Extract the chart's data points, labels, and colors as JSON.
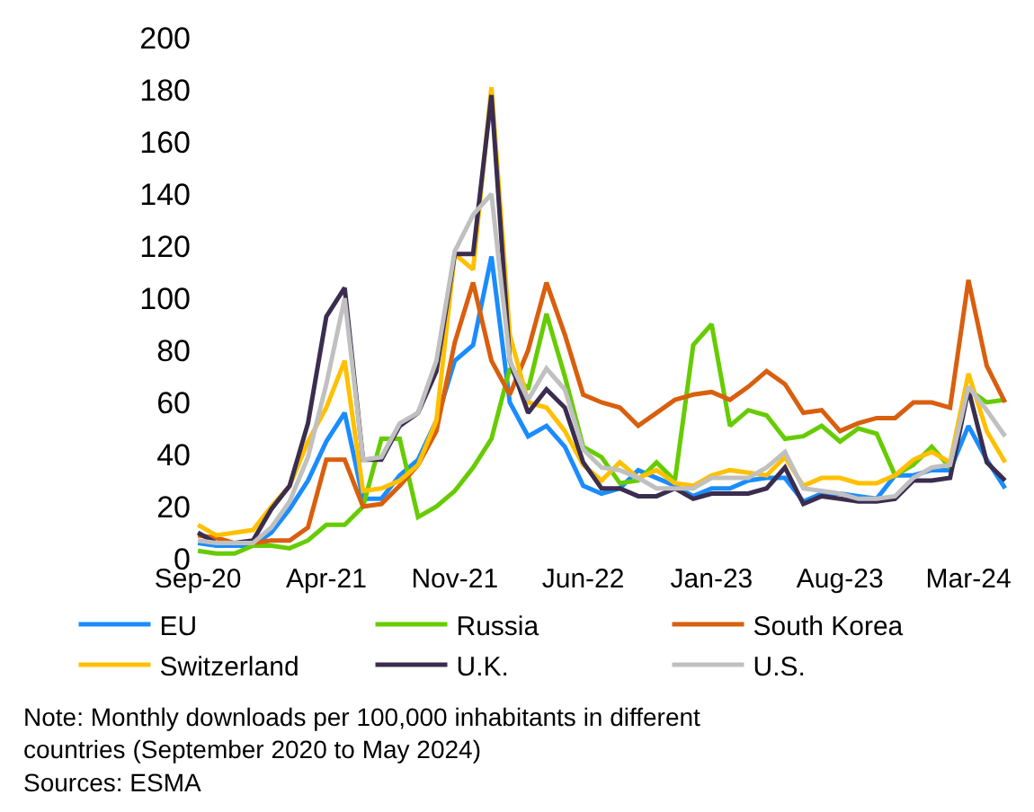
{
  "chart_data": {
    "type": "line",
    "categories": [
      "Sep-20",
      null,
      null,
      null,
      null,
      null,
      null,
      "Apr-21",
      null,
      null,
      null,
      null,
      null,
      null,
      "Nov-21",
      null,
      null,
      null,
      null,
      null,
      null,
      "Jun-22",
      null,
      null,
      null,
      null,
      null,
      null,
      "Jan-23",
      null,
      null,
      null,
      null,
      null,
      null,
      "Aug-23",
      null,
      null,
      null,
      null,
      null,
      null,
      "Mar-24",
      null,
      null
    ],
    "series": [
      {
        "name": "EU",
        "color": "#1a8cff",
        "values": [
          6,
          5,
          5,
          5,
          10,
          19,
          30,
          45,
          56,
          23,
          23,
          32,
          38,
          53,
          76,
          82,
          116,
          60,
          47,
          51,
          43,
          28,
          25,
          27,
          34,
          31,
          28,
          24,
          27,
          27,
          30,
          31,
          31,
          22,
          25,
          25,
          24,
          23,
          32,
          32,
          34,
          34,
          51,
          38,
          27
        ]
      },
      {
        "name": "Russia",
        "color": "#66cc00",
        "values": [
          3,
          2,
          2,
          5,
          5,
          4,
          7,
          13,
          13,
          20,
          46,
          46,
          16,
          20,
          26,
          35,
          46,
          73,
          65,
          94,
          70,
          43,
          39,
          29,
          30,
          37,
          30,
          82,
          90,
          51,
          57,
          55,
          46,
          47,
          51,
          45,
          50,
          48,
          32,
          36,
          43,
          35,
          65,
          60,
          61
        ]
      },
      {
        "name": "South Korea",
        "color": "#d95f0e",
        "values": [
          9,
          8,
          6,
          6,
          7,
          7,
          12,
          38,
          38,
          20,
          21,
          28,
          36,
          49,
          83,
          106,
          76,
          63,
          80,
          106,
          86,
          63,
          60,
          58,
          51,
          56,
          61,
          63,
          64,
          61,
          66,
          72,
          67,
          56,
          57,
          49,
          52,
          54,
          54,
          60,
          60,
          58,
          107,
          74,
          60
        ]
      },
      {
        "name": "Switzerland",
        "color": "#ffc000",
        "values": [
          13,
          9,
          10,
          11,
          20,
          28,
          45,
          58,
          76,
          26,
          27,
          30,
          36,
          53,
          117,
          111,
          181,
          86,
          60,
          58,
          49,
          36,
          30,
          37,
          31,
          34,
          29,
          28,
          32,
          34,
          33,
          32,
          39,
          28,
          31,
          31,
          29,
          29,
          32,
          38,
          41,
          37,
          71,
          49,
          37
        ]
      },
      {
        "name": "U.K.",
        "color": "#3b2d4f",
        "values": [
          10,
          6,
          6,
          7,
          19,
          28,
          52,
          93,
          104,
          38,
          38,
          51,
          56,
          72,
          117,
          117,
          178,
          76,
          56,
          65,
          58,
          37,
          27,
          27,
          24,
          24,
          27,
          23,
          25,
          25,
          25,
          27,
          35,
          21,
          24,
          23,
          22,
          22,
          23,
          30,
          30,
          31,
          65,
          37,
          30
        ]
      },
      {
        "name": "U.S.",
        "color": "#c0c0c0",
        "values": [
          7,
          6,
          6,
          6,
          12,
          22,
          39,
          67,
          100,
          38,
          39,
          52,
          56,
          76,
          118,
          132,
          140,
          76,
          61,
          73,
          65,
          42,
          35,
          34,
          31,
          27,
          27,
          27,
          31,
          31,
          31,
          35,
          41,
          27,
          26,
          25,
          23,
          23,
          24,
          31,
          35,
          36,
          66,
          57,
          47
        ]
      }
    ],
    "ylim": [
      0,
      200
    ],
    "yticks": [
      0,
      20,
      40,
      60,
      80,
      100,
      120,
      140,
      160,
      180,
      200
    ],
    "legend": "bottom",
    "marker": "none",
    "line_style": "solid",
    "annotations": [
      "Note: Monthly downloads per 100,000 inhabitants in different countries (September 2020 to May 2024)",
      "Sources: ESMA"
    ]
  }
}
